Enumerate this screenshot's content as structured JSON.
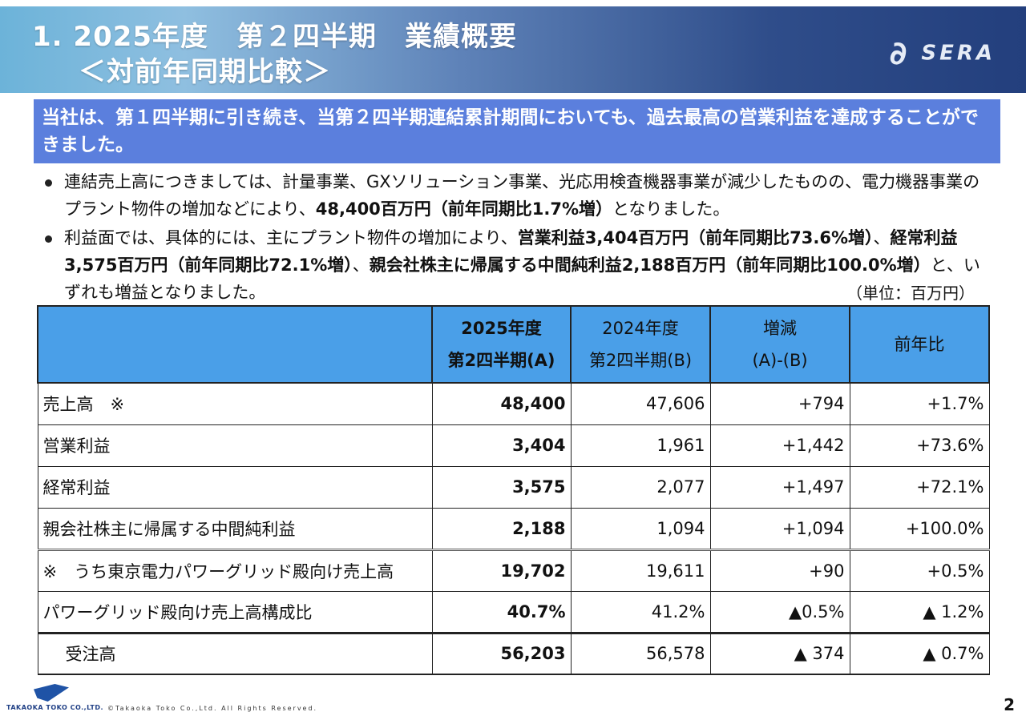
{
  "header": {
    "title_line1": "1. 2025年度　第２四半期　業績概要",
    "title_line2": "＜対前年同期比較＞",
    "brand_logo": "SERA"
  },
  "highlight": "当社は、第１四半期に引き続き、当第２四半期連結累計期間においても、過去最高の営業利益を達成することができました。",
  "bullets": [
    {
      "parts": [
        {
          "text": "連結売上高につきましては、計量事業、GXソリューション事業、光応用検査機器事業が減少したものの、電力機器事業のプラント物件の増加などにより、",
          "bold": false
        },
        {
          "text": "48,400百万円（前年同期比1.7%増）",
          "bold": true
        },
        {
          "text": "となりました。",
          "bold": false
        }
      ]
    },
    {
      "parts": [
        {
          "text": "利益面では、具体的には、主にプラント物件の増加により、",
          "bold": false
        },
        {
          "text": "営業利益3,404百万円（前年同期比73.6%増）",
          "bold": true
        },
        {
          "text": "、",
          "bold": false
        },
        {
          "text": "経常利益3,575百万円（前年同期比72.1%増）",
          "bold": true
        },
        {
          "text": "、",
          "bold": false
        },
        {
          "text": "親会社株主に帰属する中間純利益2,188百万円（前年同期比100.0%増）",
          "bold": true
        },
        {
          "text": "と、いずれも増益となりました。",
          "bold": false
        }
      ]
    }
  ],
  "unit": "（単位：百万円）",
  "table": {
    "headers": {
      "col_a_line1": "2025年度",
      "col_a_line2": "第2四半期(A)",
      "col_b_line1": "2024年度",
      "col_b_line2": "第2四半期(B)",
      "col_c_line1": "増減",
      "col_c_line2": "(A)-(B)",
      "col_d": "前年比"
    },
    "rows": [
      {
        "label": "売上高　※",
        "a": "48,400",
        "b": "47,606",
        "c": "+794",
        "d": "+1.7%"
      },
      {
        "label": "営業利益",
        "a": "3,404",
        "b": "1,961",
        "c": "+1,442",
        "d": "+73.6%"
      },
      {
        "label": "経常利益",
        "a": "3,575",
        "b": "2,077",
        "c": "+1,497",
        "d": "+72.1%"
      },
      {
        "label": "親会社株主に帰属する中間純利益",
        "a": "2,188",
        "b": "1,094",
        "c": "+1,094",
        "d": "+100.0%"
      },
      {
        "label": "※　うち東京電力パワーグリッド殿向け売上高",
        "a": "19,702",
        "b": "19,611",
        "c": "+90",
        "d": "+0.5%"
      },
      {
        "label": "パワーグリッド殿向け売上高構成比",
        "a": "40.7%",
        "b": "41.2%",
        "c": "▲0.5%",
        "d": "▲ 1.2%"
      },
      {
        "label": "受注高",
        "a": "56,203",
        "b": "56,578",
        "c": "▲ 374",
        "d": "▲ 0.7%"
      }
    ]
  },
  "footer": {
    "company": "TAKAOKA TOKO CO.,LTD.",
    "copyright": "©Takaoka Toko Co.,Ltd. All Rights Reserved.",
    "page_number": "2"
  }
}
